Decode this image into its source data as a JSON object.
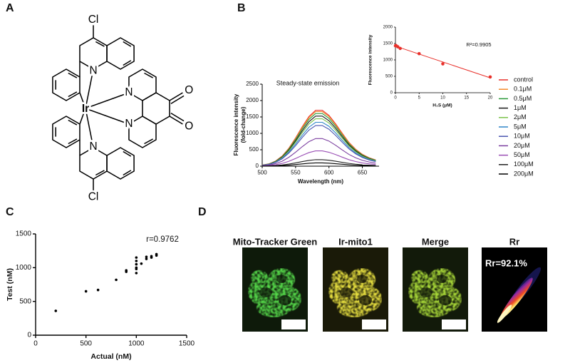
{
  "panels": [
    "A",
    "B",
    "C",
    "D"
  ],
  "structure": {
    "atoms": [
      "Cl",
      "N",
      "Ir",
      "N",
      "N",
      "N",
      "O",
      "O",
      "Cl"
    ]
  },
  "chart_data": [
    {
      "type": "line",
      "title": "Steady-state emission",
      "xlabel": "Wavelength (nm)",
      "ylabel": [
        "Fluorescence intensity",
        "(fold-change)"
      ],
      "x": [
        500,
        510,
        520,
        530,
        540,
        550,
        560,
        570,
        580,
        590,
        600,
        610,
        620,
        630,
        640,
        650,
        660,
        670
      ],
      "xlim": [
        500,
        675
      ],
      "xticks": [
        500,
        550,
        600,
        650
      ],
      "ylim": [
        0,
        2500
      ],
      "yticks": [
        0,
        500,
        1000,
        1500,
        2000,
        2500
      ],
      "legend": "right",
      "series": [
        {
          "name": "control",
          "color": "#e8302a",
          "values": [
            34,
            69,
            155,
            310,
            550,
            860,
            1204,
            1514,
            1703,
            1703,
            1548,
            1290,
            998,
            722,
            516,
            361,
            258,
            189
          ]
        },
        {
          "name": "0.1μM",
          "color": "#f5892a",
          "values": [
            34,
            67,
            151,
            302,
            538,
            840,
            1176,
            1478,
            1663,
            1663,
            1512,
            1260,
            974,
            706,
            504,
            353,
            252,
            185
          ]
        },
        {
          "name": "0.5μM",
          "color": "#2b9a3a",
          "values": [
            32,
            65,
            146,
            292,
            518,
            810,
            1134,
            1426,
            1604,
            1604,
            1458,
            1215,
            940,
            680,
            486,
            340,
            243,
            178
          ]
        },
        {
          "name": "1μM",
          "color": "#1a1a1a",
          "values": [
            31,
            62,
            139,
            277,
            493,
            770,
            1078,
            1355,
            1525,
            1525,
            1386,
            1155,
            893,
            647,
            462,
            323,
            231,
            169
          ]
        },
        {
          "name": "2μM",
          "color": "#7bc24a",
          "values": [
            29,
            58,
            131,
            263,
            467,
            730,
            1022,
            1285,
            1445,
            1445,
            1314,
            1095,
            847,
            613,
            438,
            307,
            219,
            161
          ]
        },
        {
          "name": "5μM",
          "color": "#2f86c8",
          "values": [
            27,
            54,
            122,
            243,
            432,
            675,
            945,
            1188,
            1337,
            1337,
            1215,
            1013,
            783,
            567,
            405,
            284,
            203,
            149
          ]
        },
        {
          "name": "10μM",
          "color": "#4a55b0",
          "values": [
            25,
            50,
            113,
            225,
            400,
            625,
            875,
            1100,
            1238,
            1238,
            1125,
            938,
            725,
            525,
            375,
            263,
            188,
            138
          ]
        },
        {
          "name": "20μM",
          "color": "#7b3fa0",
          "values": [
            17,
            34,
            77,
            153,
            272,
            425,
            595,
            748,
            842,
            842,
            765,
            638,
            493,
            357,
            255,
            179,
            128,
            94
          ]
        },
        {
          "name": "50μM",
          "color": "#9a4fb5",
          "values": [
            9,
            19,
            42,
            85,
            150,
            235,
            329,
            414,
            465,
            465,
            423,
            353,
            273,
            197,
            141,
            99,
            71,
            52
          ]
        },
        {
          "name": "100μM",
          "color": "#222222",
          "values": [
            4,
            8,
            18,
            36,
            64,
            100,
            140,
            176,
            198,
            198,
            180,
            150,
            116,
            84,
            60,
            42,
            30,
            22
          ]
        },
        {
          "name": "200μM",
          "color": "#000000",
          "values": [
            2,
            4,
            9,
            18,
            32,
            50,
            70,
            88,
            99,
            99,
            90,
            75,
            58,
            42,
            30,
            21,
            15,
            11
          ]
        }
      ]
    },
    {
      "type": "scatter",
      "xlabel": "H₂S (μM)",
      "ylabel": "Fluorescence intensity",
      "annotation": "R²=0.9905",
      "x": [
        0,
        0.1,
        0.5,
        1,
        5,
        10,
        20
      ],
      "values": [
        1430,
        1440,
        1400,
        1350,
        1190,
        880,
        480
      ],
      "color": "#e8302a",
      "trendline": true,
      "xlim": [
        0,
        20
      ],
      "xticks": [
        0,
        5,
        10,
        15,
        20
      ],
      "ylim": [
        0,
        2000
      ],
      "yticks": [
        0,
        500,
        1000,
        1500,
        2000
      ]
    },
    {
      "type": "scatter",
      "xlabel": "Actual (nM)",
      "ylabel": "Test (nM)",
      "annotation": "r=0.9762",
      "x": [
        200,
        500,
        620,
        800,
        900,
        900,
        1000,
        1000,
        1000,
        1000,
        1000,
        1000,
        1050,
        1100,
        1100,
        1150,
        1150,
        1200,
        1200
      ],
      "values": [
        360,
        650,
        670,
        820,
        940,
        960,
        920,
        980,
        1000,
        1050,
        1100,
        1150,
        1060,
        1130,
        1160,
        1150,
        1170,
        1180,
        1200
      ],
      "color": "#000000",
      "trendline": false,
      "xlim": [
        0,
        1500
      ],
      "xticks": [
        0,
        500,
        1000,
        1500
      ],
      "ylim": [
        0,
        1500
      ],
      "yticks": [
        0,
        500,
        1000,
        1500
      ]
    }
  ],
  "images": {
    "titles": [
      "Mito-Tracker Green",
      "Ir-mito1",
      "Merge",
      "Rr"
    ],
    "annotation": "Rr=92.1%"
  }
}
